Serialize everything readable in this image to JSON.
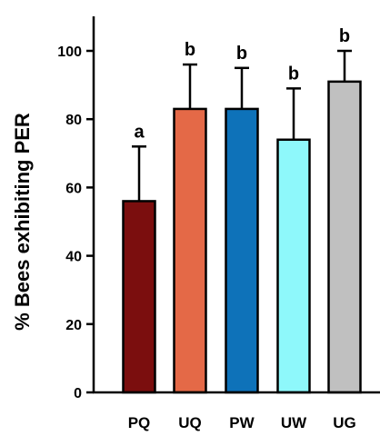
{
  "chart_data": {
    "type": "bar",
    "ylabel": "% Bees exhibiting PER",
    "xlabel": "",
    "ylim": [
      0,
      100
    ],
    "yticks": [
      0,
      20,
      40,
      60,
      80,
      100
    ],
    "grid": false,
    "categories": [
      "PQ",
      "UQ",
      "PW",
      "UW",
      "UG"
    ],
    "values": [
      56,
      83,
      83,
      74,
      91
    ],
    "error_upper": [
      72,
      96,
      95,
      89,
      100
    ],
    "significance_letters": [
      "a",
      "b",
      "b",
      "b",
      "b"
    ],
    "colors": [
      "#7b0e0e",
      "#e46947",
      "#0e72b9",
      "#8ef8fb",
      "#c0c0c0"
    ]
  }
}
